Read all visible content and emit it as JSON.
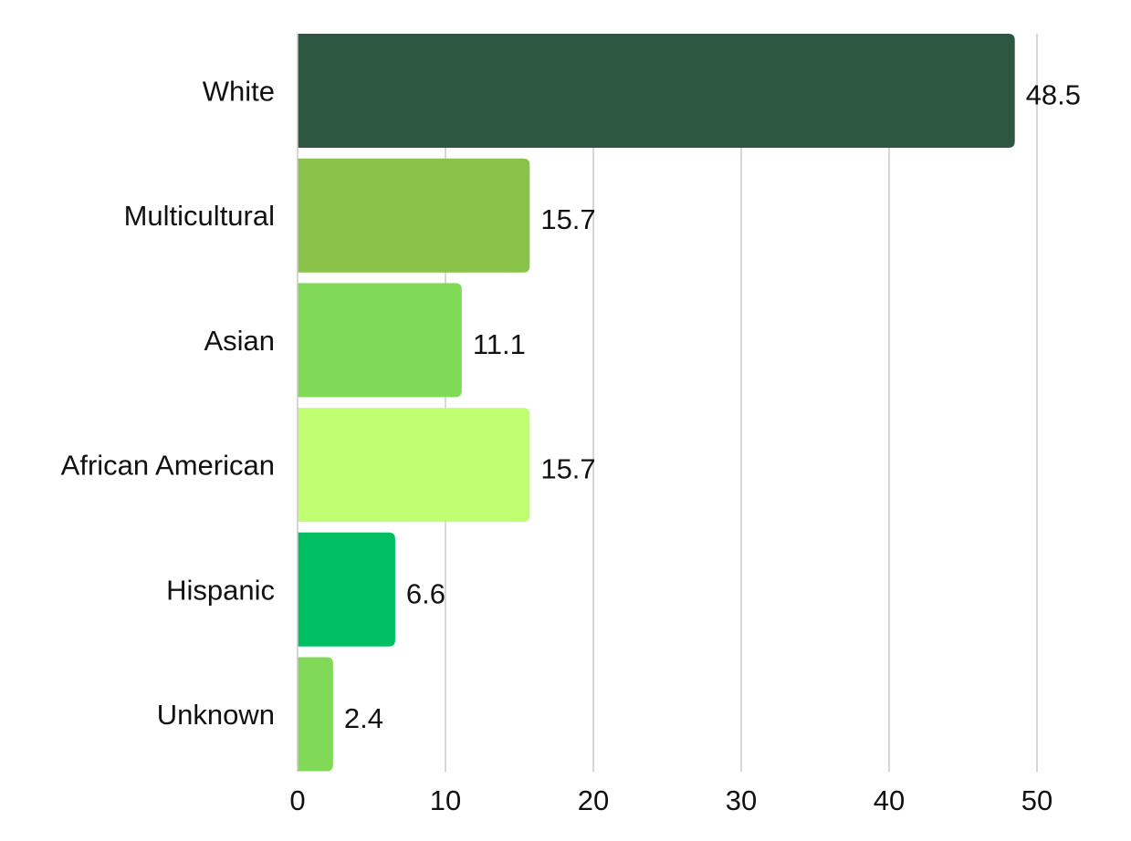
{
  "chart_data": {
    "type": "bar",
    "orientation": "horizontal",
    "categories": [
      "White",
      "Multicultural",
      "Asian",
      "African American",
      "Hispanic",
      "Unknown"
    ],
    "values": [
      48.5,
      15.7,
      11.1,
      15.7,
      6.6,
      2.4
    ],
    "value_labels": [
      "48.5",
      "15.7",
      "11.1",
      "15.7",
      "6.6",
      "2.4"
    ],
    "bar_colors": [
      "#2e5742",
      "#8bc34a",
      "#80d957",
      "#c1ff72",
      "#00bf63",
      "#80d957"
    ],
    "x_ticks": [
      0,
      10,
      20,
      30,
      40,
      50
    ],
    "x_tick_labels": [
      "0",
      "10",
      "20",
      "30",
      "40",
      "50"
    ],
    "xlim": [
      0,
      50
    ],
    "grid": "vertical",
    "title": "",
    "xlabel": "",
    "ylabel": ""
  }
}
